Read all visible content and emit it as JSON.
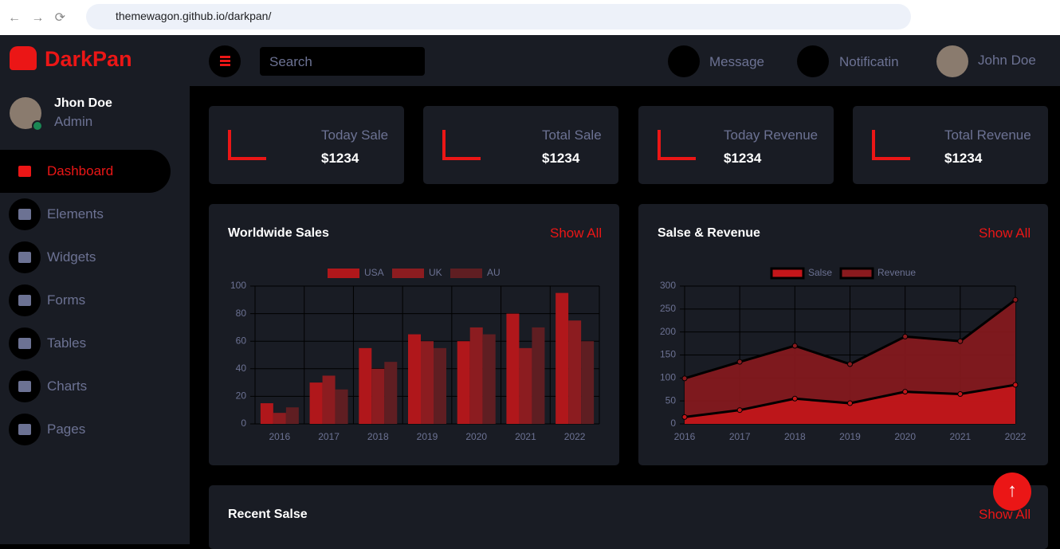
{
  "browser": {
    "url": "themewagon.github.io/darkpan/"
  },
  "brand": "DarkPan",
  "user": {
    "name": "Jhon Doe",
    "role": "Admin"
  },
  "menu": [
    "Dashboard",
    "Elements",
    "Widgets",
    "Forms",
    "Tables",
    "Charts",
    "Pages"
  ],
  "search": "Search",
  "nav": {
    "message": "Message",
    "notification": "Notificatin",
    "user": "John Doe"
  },
  "stats": [
    {
      "label": "Today Sale",
      "value": "$1234"
    },
    {
      "label": "Total Sale",
      "value": "$1234"
    },
    {
      "label": "Today Revenue",
      "value": "$1234"
    },
    {
      "label": "Total Revenue",
      "value": "$1234"
    }
  ],
  "panels": [
    {
      "title": "Worldwide Sales",
      "link": "Show All"
    },
    {
      "title": "Salse & Revenue",
      "link": "Show All"
    },
    {
      "title": "Recent Salse",
      "link": "Show All"
    }
  ],
  "chart_data": [
    {
      "type": "bar",
      "categories": [
        "2016",
        "2017",
        "2018",
        "2019",
        "2020",
        "2021",
        "2022"
      ],
      "series": [
        {
          "name": "USA",
          "color": "#b0171b",
          "values": [
            15,
            30,
            55,
            65,
            60,
            80,
            95
          ]
        },
        {
          "name": "UK",
          "color": "#8c1c20",
          "values": [
            8,
            35,
            40,
            60,
            70,
            55,
            75
          ]
        },
        {
          "name": "AU",
          "color": "#5f1e22",
          "values": [
            12,
            25,
            45,
            55,
            65,
            70,
            60
          ]
        }
      ],
      "ylim": [
        0,
        100
      ],
      "yticks": [
        0,
        20,
        40,
        60,
        80,
        100
      ],
      "grid": true
    },
    {
      "type": "area",
      "categories": [
        "2016",
        "2017",
        "2018",
        "2019",
        "2020",
        "2021",
        "2022"
      ],
      "series": [
        {
          "name": "Salse",
          "color": "#c4161a",
          "values": [
            15,
            30,
            55,
            45,
            70,
            65,
            85
          ]
        },
        {
          "name": "Revenue",
          "color": "#8a1a1e",
          "values": [
            99,
            135,
            170,
            130,
            190,
            180,
            270
          ]
        }
      ],
      "ylim": [
        0,
        300
      ],
      "yticks": [
        0,
        50,
        100,
        150,
        200,
        250,
        300
      ],
      "grid": true
    }
  ]
}
